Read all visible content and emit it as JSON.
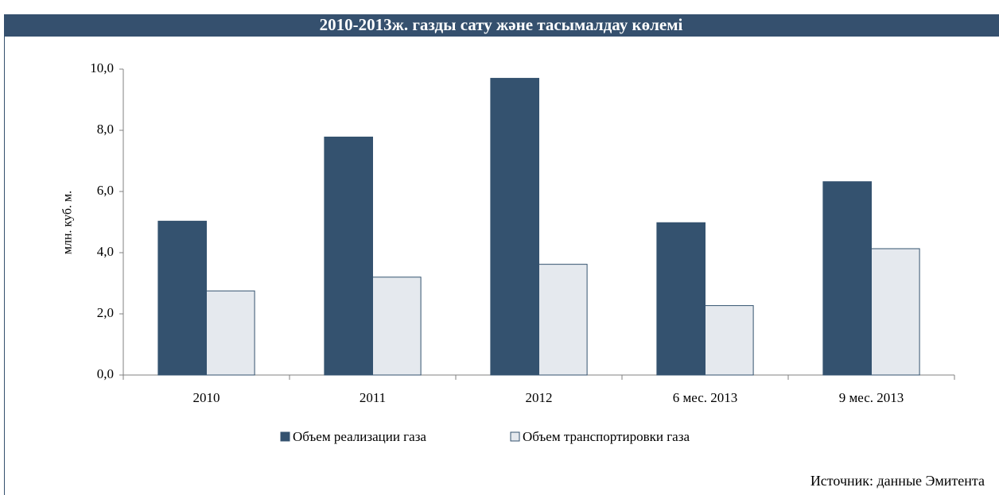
{
  "chart_data": {
    "type": "bar",
    "title": "2010-2013ж. газды сату және тасымалдау көлемі",
    "y_label": "млн. куб. м.",
    "source": "Источник: данные Эмитента",
    "categories": [
      "2010",
      "2011",
      "2012",
      "6 мес. 2013",
      "9 мес. 2013"
    ],
    "series": [
      {
        "name": "Объем реализации газа",
        "color": "#34526f",
        "values": [
          5.03,
          7.78,
          9.7,
          4.98,
          6.32
        ]
      },
      {
        "name": "Объем транспортировки газа",
        "color": "#e5e9ee",
        "values": [
          2.75,
          3.2,
          3.62,
          2.27,
          4.13
        ]
      }
    ],
    "ylim": [
      0,
      10
    ],
    "yticks": [
      {
        "value": 0,
        "label": "0,0"
      },
      {
        "value": 2,
        "label": "2,0"
      },
      {
        "value": 4,
        "label": "4,0"
      },
      {
        "value": 6,
        "label": "6,0"
      },
      {
        "value": 8,
        "label": "8,0"
      },
      {
        "value": 10,
        "label": "10,0"
      }
    ],
    "legend": "bottom"
  }
}
